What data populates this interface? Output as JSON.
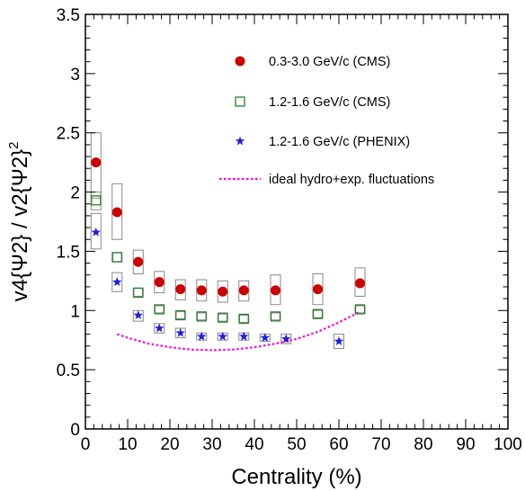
{
  "chart_data": {
    "type": "scatter",
    "xlabel": "Centrality (%)",
    "ylabel": "v4{Ψ2} / v2{Ψ2}²",
    "xlim": [
      0,
      100
    ],
    "ylim": [
      0,
      3.5
    ],
    "x_ticks": [
      0,
      10,
      20,
      30,
      40,
      50,
      60,
      70,
      80,
      90,
      100
    ],
    "y_ticks": [
      0,
      0.5,
      1,
      1.5,
      2,
      2.5,
      3,
      3.5
    ],
    "x_tick_labels": [
      "0",
      "10",
      "20",
      "30",
      "40",
      "50",
      "60",
      "70",
      "80",
      "90",
      "100"
    ],
    "y_tick_labels": [
      "0",
      "0.5",
      "1",
      "1.5",
      "2",
      "2.5",
      "3",
      "3.5"
    ],
    "grid": false,
    "legend_position": "top-right",
    "series": [
      {
        "name": "0.3-3.0 GeV/c (CMS)",
        "marker": "filled-circle",
        "color": "#cc0000",
        "x": [
          2.5,
          7.5,
          12.5,
          17.5,
          22.5,
          27.5,
          32.5,
          37.5,
          45,
          55,
          65
        ],
        "y": [
          2.25,
          1.83,
          1.41,
          1.24,
          1.18,
          1.17,
          1.16,
          1.17,
          1.17,
          1.18,
          1.23
        ],
        "sys_low": [
          1.95,
          1.6,
          1.31,
          1.15,
          1.09,
          1.08,
          1.07,
          1.08,
          1.05,
          1.05,
          1.12
        ],
        "sys_high": [
          2.5,
          2.07,
          1.51,
          1.33,
          1.26,
          1.26,
          1.25,
          1.25,
          1.3,
          1.31,
          1.36
        ]
      },
      {
        "name": "1.2-1.6 GeV/c (CMS)",
        "marker": "open-square",
        "color": "#2e7d32",
        "x": [
          2.5,
          7.5,
          12.5,
          17.5,
          22.5,
          27.5,
          32.5,
          37.5,
          45,
          55,
          65
        ],
        "y": [
          1.93,
          1.45,
          1.15,
          1.01,
          0.96,
          0.95,
          0.94,
          0.93,
          0.95,
          0.97,
          1.01
        ],
        "sys_low": [
          1.85,
          1.41,
          1.12,
          0.98,
          0.93,
          0.92,
          0.91,
          0.9,
          0.92,
          0.94,
          0.98
        ],
        "sys_high": [
          2.0,
          1.49,
          1.19,
          1.04,
          0.99,
          0.98,
          0.97,
          0.96,
          0.98,
          1.0,
          1.04
        ]
      },
      {
        "name": "1.2-1.6 GeV/c (PHENIX)",
        "marker": "star",
        "color": "#1f1fdd",
        "x": [
          2.5,
          7.5,
          12.5,
          17.5,
          22.5,
          27.5,
          32.5,
          37.5,
          42.5,
          47.5,
          60
        ],
        "y": [
          1.66,
          1.24,
          0.96,
          0.85,
          0.81,
          0.78,
          0.78,
          0.78,
          0.77,
          0.76,
          0.74
        ],
        "sys_low": [
          1.52,
          1.16,
          0.91,
          0.81,
          0.77,
          0.75,
          0.75,
          0.75,
          0.74,
          0.72,
          0.68
        ],
        "sys_high": [
          1.82,
          1.32,
          1.0,
          0.89,
          0.85,
          0.81,
          0.81,
          0.81,
          0.8,
          0.8,
          0.8
        ]
      },
      {
        "name": "ideal hydro+exp. fluctuations",
        "line": "dotted",
        "color": "#ff00dd",
        "x": [
          7.5,
          10,
          15,
          20,
          25,
          30,
          35,
          40,
          45,
          50,
          55,
          60,
          65
        ],
        "y": [
          0.8,
          0.77,
          0.72,
          0.69,
          0.67,
          0.665,
          0.67,
          0.69,
          0.72,
          0.76,
          0.82,
          0.9,
          0.99
        ]
      }
    ]
  }
}
